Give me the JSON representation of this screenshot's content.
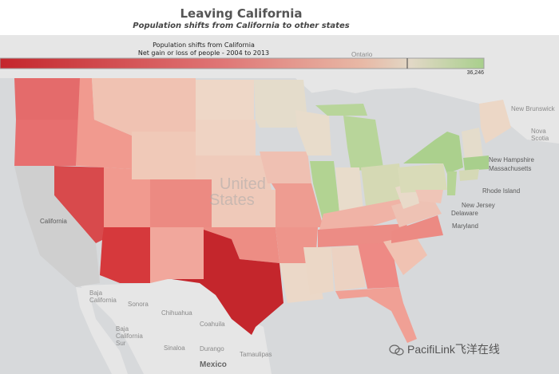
{
  "header": {
    "title": "Leaving California",
    "subtitle": "Population shifts from California to other states"
  },
  "legend": {
    "title_line1": "Population shifts from California",
    "title_line2": "Net gain or loss of people - 2004 to 2013",
    "max_label": "36,246"
  },
  "colors": {
    "ocean": "#d6d8da",
    "land_bg": "#e6e6e6",
    "strong_loss": "#c4262c",
    "medium_loss": "#e46b6b",
    "light_loss": "#f0a49a",
    "pale": "#eed3c4",
    "neutral": "#e3dccb",
    "gain": "#a8cf8c"
  },
  "map_labels": {
    "ontario": "Ontario",
    "new_brunswick": "New Brunswick",
    "nova_scotia": "Nova Scotia",
    "new_hampshire": "New Hampshire",
    "massachusetts": "Massachusetts",
    "rhode_island": "Rhode Island",
    "new_jersey": "New Jersey",
    "delaware": "Delaware",
    "maryland": "Maryland",
    "california": "California",
    "baja_california": "Baja California",
    "sonora": "Sonora",
    "chihuahua": "Chihuahua",
    "coahuila": "Coahuila",
    "baja_california_sur": "Baja California Sur",
    "sinaloa": "Sinaloa",
    "durango": "Durango",
    "tamaulipas": "Tamaulipas",
    "mexico": "Mexico",
    "united": "United",
    "states": "States"
  },
  "watermark": "PacifiLink飞洋在线"
}
